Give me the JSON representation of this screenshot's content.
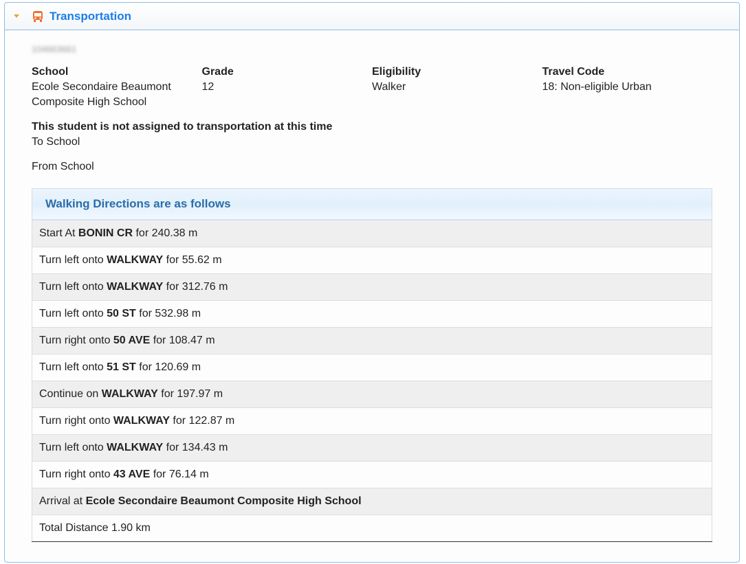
{
  "panel": {
    "title": "Transportation",
    "icon": "bus-icon",
    "accent": "#1a7ee8",
    "icon_color": "#f07030"
  },
  "student_id": "104663661",
  "info": [
    {
      "label": "School",
      "value": "Ecole Secondaire Beaumont Composite High School"
    },
    {
      "label": "Grade",
      "value": "12"
    },
    {
      "label": "Eligibility",
      "value": "Walker"
    },
    {
      "label": "Travel Code",
      "value": "18: Non-eligible Urban"
    }
  ],
  "notice": "This student is not assigned to transportation at this time",
  "to_school": "To School",
  "from_school": "From School",
  "directions": {
    "header": "Walking Directions are as follows",
    "rows": [
      {
        "pre": "Start At ",
        "bold": "BONIN CR",
        "post": " for 240.38 m"
      },
      {
        "pre": "Turn left onto ",
        "bold": "WALKWAY",
        "post": " for 55.62 m"
      },
      {
        "pre": "Turn left onto ",
        "bold": "WALKWAY",
        "post": " for 312.76 m"
      },
      {
        "pre": "Turn left onto ",
        "bold": "50 ST",
        "post": " for 532.98 m"
      },
      {
        "pre": "Turn right onto ",
        "bold": "50 AVE",
        "post": " for 108.47 m"
      },
      {
        "pre": "Turn left onto ",
        "bold": "51 ST",
        "post": " for 120.69 m"
      },
      {
        "pre": "Continue on ",
        "bold": "WALKWAY",
        "post": " for 197.97 m"
      },
      {
        "pre": "Turn right onto ",
        "bold": "WALKWAY",
        "post": " for 122.87 m"
      },
      {
        "pre": "Turn left onto ",
        "bold": "WALKWAY",
        "post": " for 134.43 m"
      },
      {
        "pre": "Turn right onto ",
        "bold": "43 AVE",
        "post": " for 76.14 m"
      },
      {
        "pre": "Arrival at ",
        "bold": "Ecole Secondaire Beaumont Composite High School",
        "post": ""
      },
      {
        "pre": "Total Distance 1.90 km",
        "bold": "",
        "post": ""
      }
    ]
  }
}
